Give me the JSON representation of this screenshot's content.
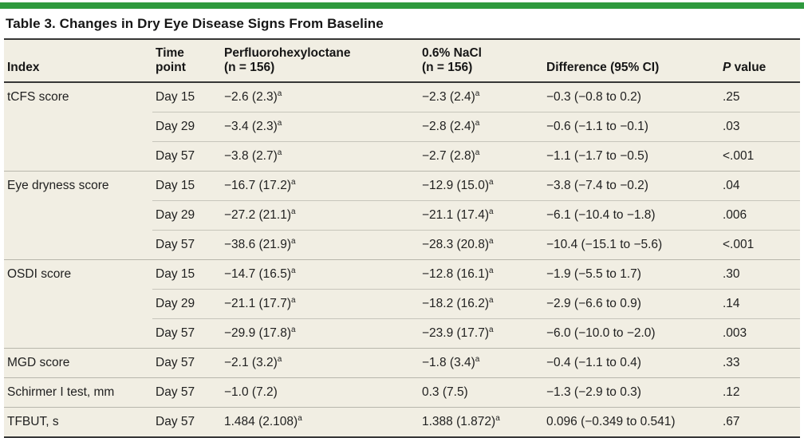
{
  "page": {
    "background": "#ffffff"
  },
  "accent_bar": {
    "color": "#2f9a3e"
  },
  "table": {
    "title": "Table 3. Changes in Dry Eye Disease Signs From Baseline",
    "background": "#f1eee3",
    "footnote_marker": "a",
    "columns": [
      {
        "id": "index",
        "label": "Index"
      },
      {
        "id": "time",
        "label": "Time\npoint"
      },
      {
        "id": "pfho",
        "label": "Perfluorohexyloctane\n(n = 156)"
      },
      {
        "id": "nacl",
        "label": "0.6% NaCl\n(n = 156)"
      },
      {
        "id": "diff",
        "label": "Difference (95% CI)"
      },
      {
        "id": "p",
        "label": "P value",
        "italic_prefix": "P"
      }
    ],
    "rows": [
      {
        "index": "tCFS score",
        "group_start": true,
        "time": "Day 15",
        "pfho": "−2.6 (2.3)^a",
        "nacl": "−2.3 (2.4)^a",
        "diff": "−0.3 (−0.8 to 0.2)",
        "p": ".25"
      },
      {
        "index": "",
        "group_start": false,
        "time": "Day 29",
        "pfho": "−3.4 (2.3)^a",
        "nacl": "−2.8 (2.4)^a",
        "diff": "−0.6 (−1.1 to −0.1)",
        "p": ".03"
      },
      {
        "index": "",
        "group_start": false,
        "time": "Day 57",
        "pfho": "−3.8 (2.7)^a",
        "nacl": "−2.7 (2.8)^a",
        "diff": "−1.1 (−1.7 to −0.5)",
        "p": "<.001"
      },
      {
        "index": "Eye dryness score",
        "group_start": true,
        "time": "Day 15",
        "pfho": "−16.7 (17.2)^a",
        "nacl": "−12.9 (15.0)^a",
        "diff": "−3.8 (−7.4 to −0.2)",
        "p": ".04"
      },
      {
        "index": "",
        "group_start": false,
        "time": "Day 29",
        "pfho": "−27.2 (21.1)^a",
        "nacl": "−21.1 (17.4)^a",
        "diff": "−6.1 (−10.4 to −1.8)",
        "p": ".006"
      },
      {
        "index": "",
        "group_start": false,
        "time": "Day 57",
        "pfho": "−38.6 (21.9)^a",
        "nacl": "−28.3 (20.8)^a",
        "diff": "−10.4 (−15.1 to −5.6)",
        "p": "<.001"
      },
      {
        "index": "OSDI score",
        "group_start": true,
        "time": "Day 15",
        "pfho": "−14.7 (16.5)^a",
        "nacl": "−12.8 (16.1)^a",
        "diff": "−1.9 (−5.5 to 1.7)",
        "p": ".30"
      },
      {
        "index": "",
        "group_start": false,
        "time": "Day 29",
        "pfho": "−21.1 (17.7)^a",
        "nacl": "−18.2 (16.2)^a",
        "diff": "−2.9 (−6.6 to 0.9)",
        "p": ".14"
      },
      {
        "index": "",
        "group_start": false,
        "time": "Day 57",
        "pfho": "−29.9 (17.8)^a",
        "nacl": "−23.9 (17.7)^a",
        "diff": "−6.0 (−10.0 to −2.0)",
        "p": ".003"
      },
      {
        "index": "MGD score",
        "group_start": true,
        "time": "Day 57",
        "pfho": "−2.1 (3.2)^a",
        "nacl": "−1.8 (3.4)^a",
        "diff": "−0.4 (−1.1 to 0.4)",
        "p": ".33"
      },
      {
        "index": "Schirmer I test, mm",
        "group_start": true,
        "time": "Day 57",
        "pfho": "−1.0 (7.2)",
        "nacl": "0.3 (7.5)",
        "diff": "−1.3 (−2.9 to 0.3)",
        "p": ".12"
      },
      {
        "index": "TFBUT, s",
        "group_start": true,
        "time": "Day 57",
        "pfho": "1.484 (2.108)^a",
        "nacl": "1.388 (1.872)^a",
        "diff": "0.096 (−0.349 to 0.541)",
        "p": ".67"
      }
    ]
  }
}
